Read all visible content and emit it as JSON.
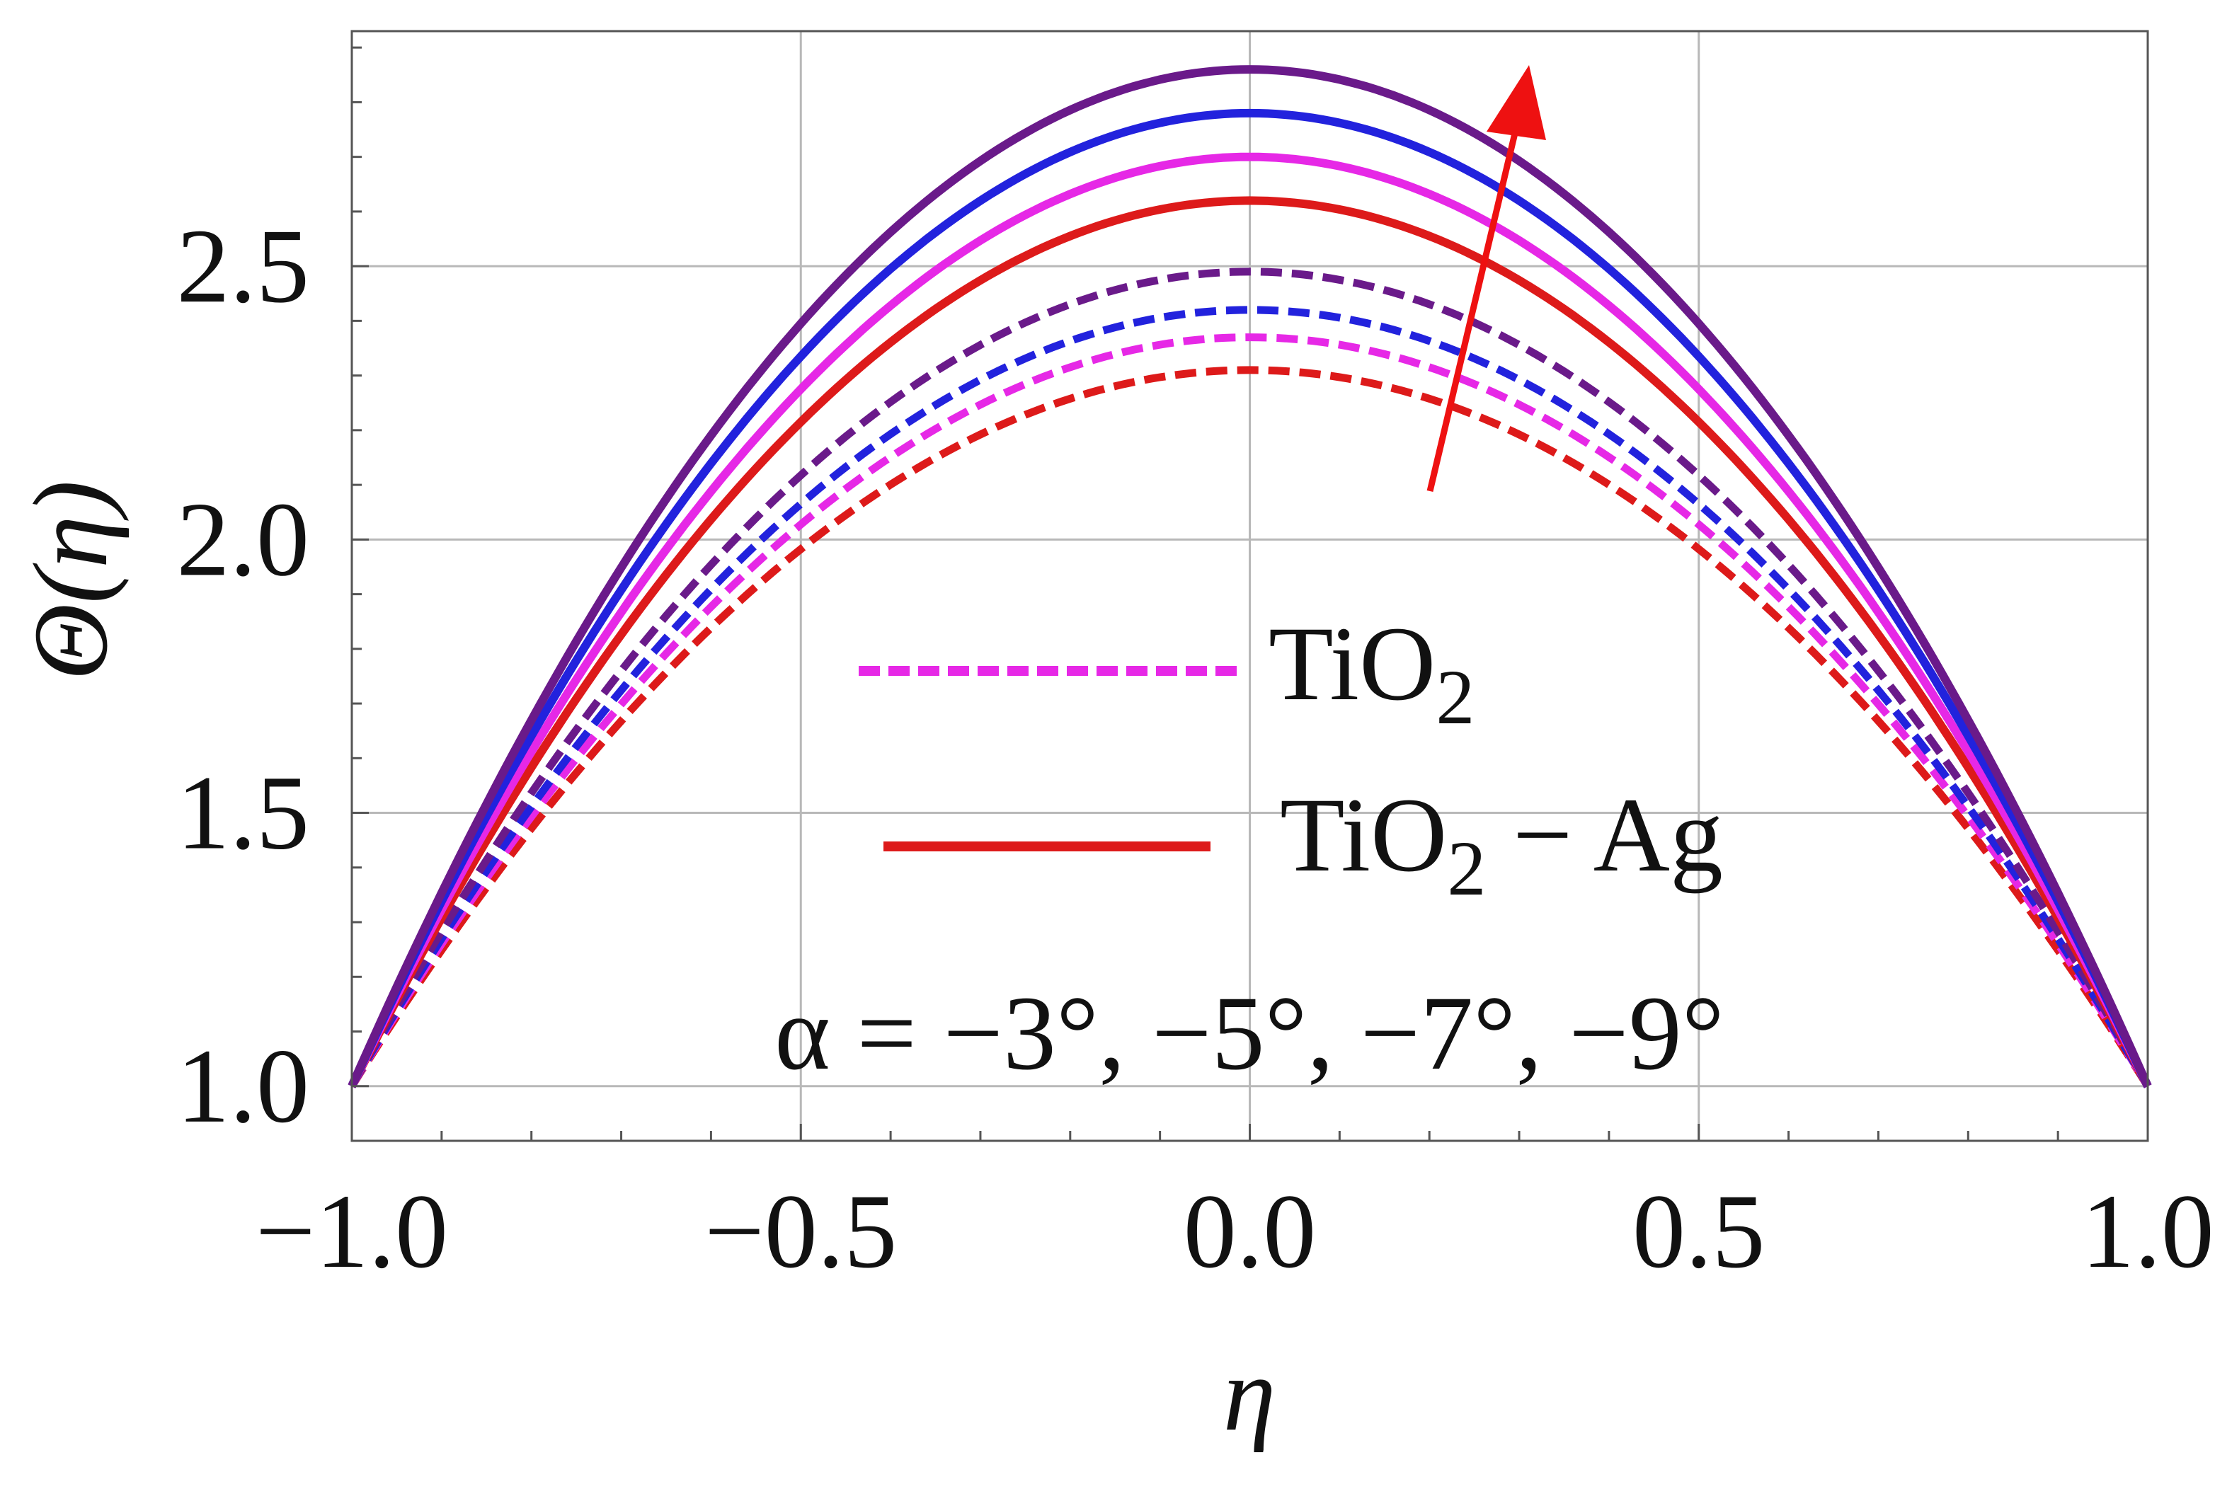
{
  "chart_data": {
    "type": "line",
    "xlabel": "η",
    "ylabel": "Θ(η)",
    "xlim": [
      -1.0,
      1.0
    ],
    "ylim": [
      0.9,
      2.93
    ],
    "xticks": [
      -1.0,
      -0.5,
      0.0,
      0.5,
      1.0
    ],
    "xtick_labels": [
      "−1.0",
      "−0.5",
      "0.0",
      "0.5",
      "1.0"
    ],
    "yticks": [
      1.0,
      1.5,
      2.0,
      2.5
    ],
    "ytick_labels": [
      "1.0",
      "1.5",
      "2.0",
      "2.5"
    ],
    "grid": true,
    "legend_position": "center",
    "legend": [
      {
        "label_main": "TiO",
        "label_sub": "2",
        "label_tail": "",
        "style": "dashed",
        "color": "#e628e6"
      },
      {
        "label_main": "TiO",
        "label_sub": "2",
        "label_tail": " − Ag",
        "style": "solid",
        "color": "#dd1a1a"
      }
    ],
    "annotation": "α = −3°, −5°, −7°, −9°",
    "arrow_color": "#ee1111",
    "series": [
      {
        "group": "TiO2",
        "alpha_deg": -3,
        "style": "dashed",
        "color": "#dd1a1a",
        "peak": 2.31
      },
      {
        "group": "TiO2",
        "alpha_deg": -5,
        "style": "dashed",
        "color": "#e628e6",
        "peak": 2.37
      },
      {
        "group": "TiO2",
        "alpha_deg": -7,
        "style": "dashed",
        "color": "#2222dd",
        "peak": 2.42
      },
      {
        "group": "TiO2",
        "alpha_deg": -9,
        "style": "dashed",
        "color": "#6a1a8a",
        "peak": 2.49
      },
      {
        "group": "TiO2-Ag",
        "alpha_deg": -3,
        "style": "solid",
        "color": "#dd1a1a",
        "peak": 2.62
      },
      {
        "group": "TiO2-Ag",
        "alpha_deg": -5,
        "style": "solid",
        "color": "#e628e6",
        "peak": 2.7
      },
      {
        "group": "TiO2-Ag",
        "alpha_deg": -7,
        "style": "solid",
        "color": "#2222dd",
        "peak": 2.78
      },
      {
        "group": "TiO2-Ag",
        "alpha_deg": -9,
        "style": "solid",
        "color": "#6a1a8a",
        "peak": 2.86
      }
    ],
    "boundary_value": 1.0
  }
}
